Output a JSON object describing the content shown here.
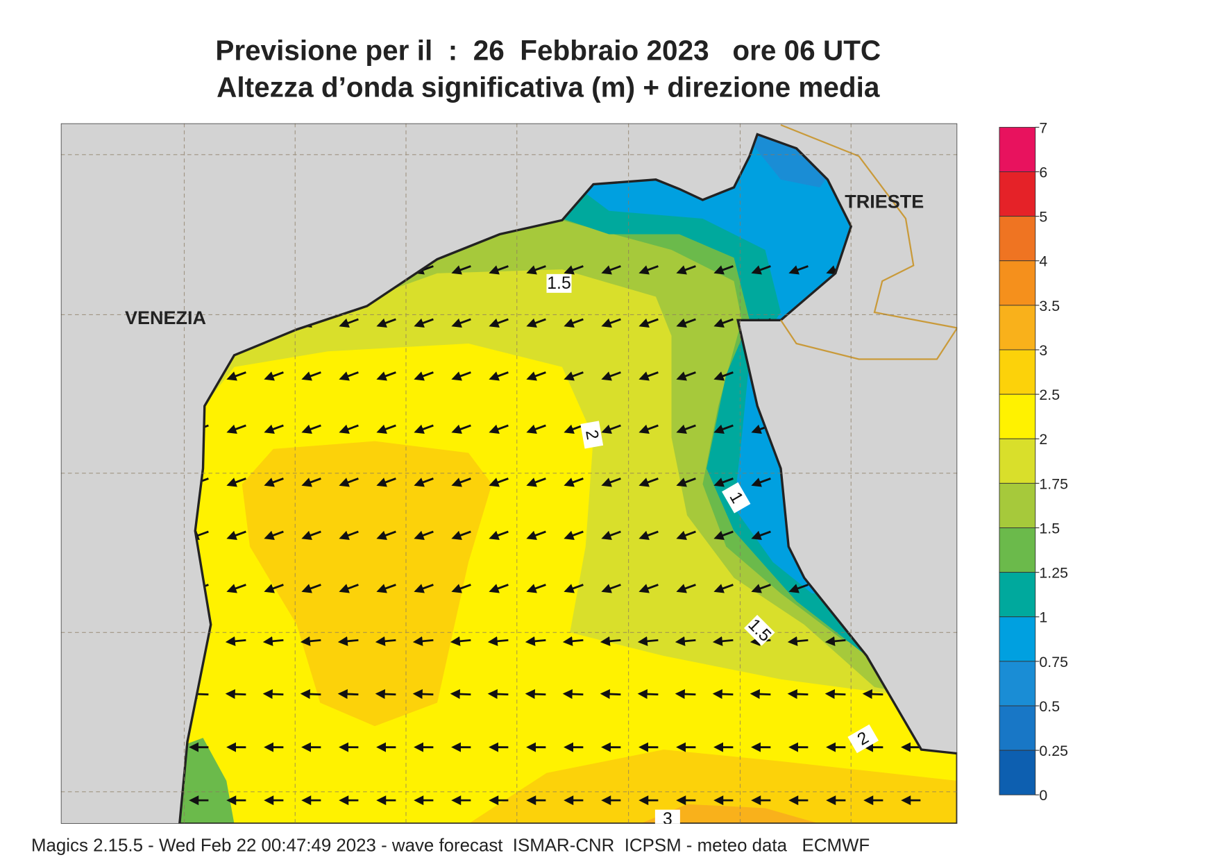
{
  "header": {
    "line1": "Previsione per il  :  26  Febbraio 2023   ore 06 UTC",
    "line2": "Altezza d’onda significativa (m) + direzione media"
  },
  "map": {
    "places": [
      "VENEZIA",
      "TRIESTE"
    ],
    "contour_labels": [
      "1.5",
      "2",
      "1",
      "1.5",
      "2",
      "3"
    ]
  },
  "colorbar": {
    "levels": [
      7,
      6,
      5,
      4,
      3.5,
      3,
      2.5,
      2,
      1.75,
      1.5,
      1.25,
      1,
      0.75,
      0.5,
      0.25,
      0
    ],
    "colors": [
      "#e8125e",
      "#e52228",
      "#ef7422",
      "#f5901c",
      "#f9b11b",
      "#fcd20a",
      "#fff200",
      "#d9df2b",
      "#a6c93b",
      "#6bba4b",
      "#00a99d",
      "#00a0e0",
      "#1a8dd5",
      "#1877c6",
      "#0d5fb0"
    ]
  },
  "footer": "Magics 2.15.5 - Wed Feb 22 00:47:49 2023 - wave forecast  ISMAR-CNR  ICPSM - meteo data   ECMWF"
}
